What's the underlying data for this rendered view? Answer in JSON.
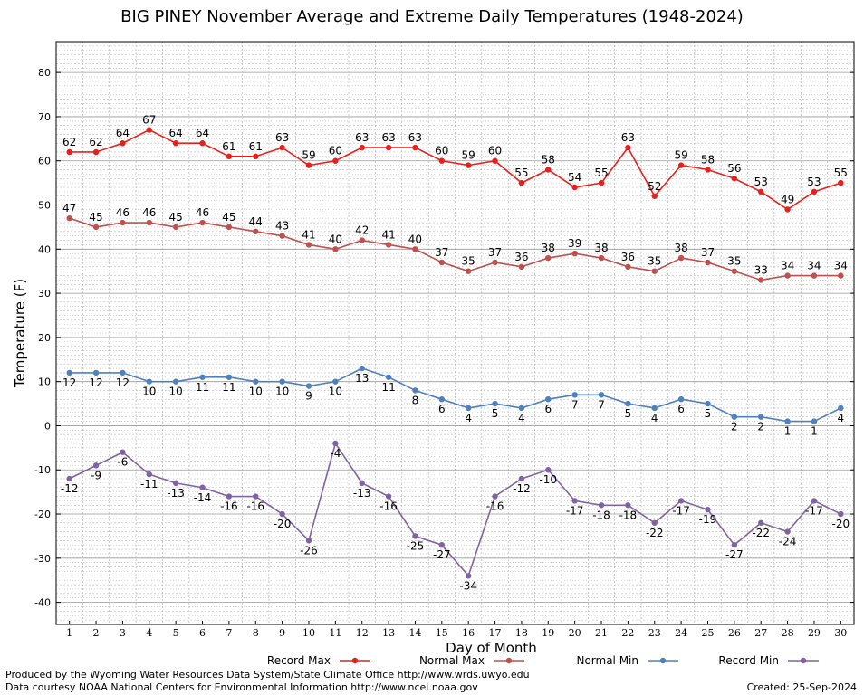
{
  "chart_data": {
    "type": "line",
    "title": "BIG PINEY November Average and Extreme Daily Temperatures (1948-2024)",
    "xlabel": "Day of Month",
    "ylabel": "Temperature (F)",
    "ylim": [
      -45,
      87
    ],
    "yticks": [
      -40,
      -30,
      -20,
      -10,
      0,
      10,
      20,
      30,
      40,
      50,
      60,
      70,
      80
    ],
    "x": [
      1,
      2,
      3,
      4,
      5,
      6,
      7,
      8,
      9,
      10,
      11,
      12,
      13,
      14,
      15,
      16,
      17,
      18,
      19,
      20,
      21,
      22,
      23,
      24,
      25,
      26,
      27,
      28,
      29,
      30
    ],
    "grid": true,
    "legend_position": "bottom",
    "series": [
      {
        "name": "Record Max",
        "color": "#e8201c",
        "label_pos": "above",
        "values": [
          62,
          62,
          64,
          67,
          64,
          64,
          61,
          61,
          63,
          59,
          60,
          63,
          63,
          63,
          60,
          59,
          60,
          55,
          58,
          54,
          55,
          63,
          52,
          59,
          58,
          56,
          53,
          49,
          53,
          55
        ]
      },
      {
        "name": "Normal Max",
        "color": "#c0504d",
        "label_pos": "above",
        "values": [
          47,
          45,
          46,
          46,
          45,
          46,
          45,
          44,
          43,
          41,
          40,
          42,
          41,
          40,
          37,
          35,
          37,
          36,
          38,
          39,
          38,
          36,
          35,
          38,
          37,
          35,
          33,
          34,
          34,
          34
        ]
      },
      {
        "name": "Normal Min",
        "color": "#4f81bd",
        "label_pos": "below",
        "values": [
          12,
          12,
          12,
          10,
          10,
          11,
          11,
          10,
          10,
          9,
          10,
          13,
          11,
          8,
          6,
          4,
          5,
          4,
          6,
          7,
          7,
          5,
          4,
          6,
          5,
          2,
          2,
          1,
          1,
          4
        ]
      },
      {
        "name": "Record Min",
        "color": "#8064a2",
        "label_pos": "below",
        "values": [
          -12,
          -9,
          -6,
          -11,
          -13,
          -14,
          -16,
          -16,
          -20,
          -26,
          -4,
          -13,
          -16,
          -25,
          -27,
          -34,
          -16,
          -12,
          -10,
          -17,
          -18,
          -18,
          -22,
          -17,
          -19,
          -27,
          -22,
          -24,
          -17,
          -20
        ]
      }
    ]
  },
  "footer": {
    "produced_by": "Produced by the Wyoming Water Resources Data System/State Climate Office http://www.wrds.uwyo.edu",
    "courtesy": "Data courtesy NOAA National Centers for Environmental Information http://www.ncei.noaa.gov",
    "created": "Created: 25-Sep-2024"
  }
}
